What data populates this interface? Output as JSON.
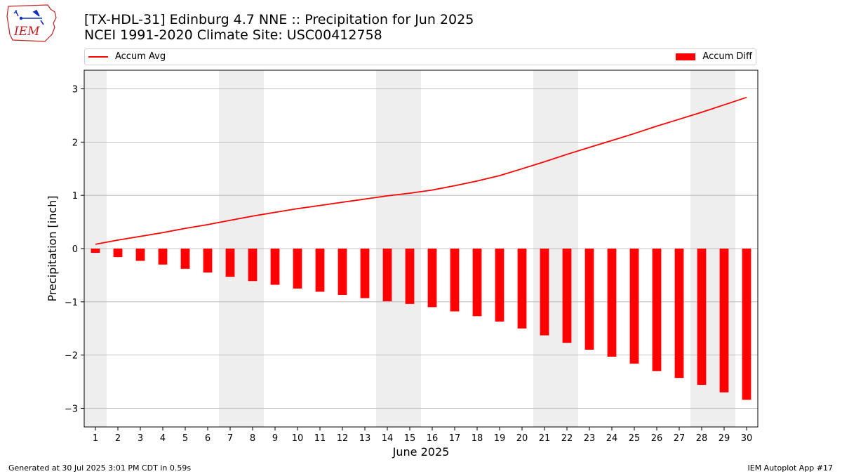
{
  "header": {
    "title_line1": "[TX-HDL-31] Edinburg 4.7 NNE :: Precipitation for Jun 2025",
    "title_line2": "NCEI 1991-2020 Climate Site: USC00412758",
    "logo_text": "IEM"
  },
  "footer": {
    "left": "Generated at 30 Jul 2025 3:01 PM CDT in 0.59s",
    "right": "IEM Autoplot App #17"
  },
  "colors": {
    "series": "#ff0000",
    "weekend_shade": "#eeeeee",
    "grid": "#b0b0b0"
  },
  "chart_data": {
    "type": "bar",
    "xlabel": "June 2025",
    "ylabel": "Precipitation [inch]",
    "xlim": [
      0.5,
      30.5
    ],
    "ylim": [
      -3.35,
      3.35
    ],
    "x": [
      1,
      2,
      3,
      4,
      5,
      6,
      7,
      8,
      9,
      10,
      11,
      12,
      13,
      14,
      15,
      16,
      17,
      18,
      19,
      20,
      21,
      22,
      23,
      24,
      25,
      26,
      27,
      28,
      29,
      30
    ],
    "x_tick_labels": [
      "1",
      "2",
      "3",
      "4",
      "5",
      "6",
      "7",
      "8",
      "9",
      "10",
      "11",
      "12",
      "13",
      "14",
      "15",
      "16",
      "17",
      "18",
      "19",
      "20",
      "21",
      "22",
      "23",
      "24",
      "25",
      "26",
      "27",
      "28",
      "29",
      "30"
    ],
    "y_ticks": [
      -3,
      -2,
      -1,
      0,
      1,
      2,
      3
    ],
    "y_tick_labels": [
      "−3",
      "−2",
      "−1",
      "0",
      "1",
      "2",
      "3"
    ],
    "grid": "horizontal",
    "legend": "top",
    "shaded_days": [
      1,
      7,
      8,
      14,
      15,
      21,
      22,
      28,
      29
    ],
    "series": [
      {
        "name": "Accum Avg",
        "type": "line",
        "values": [
          0.08,
          0.16,
          0.23,
          0.3,
          0.38,
          0.45,
          0.53,
          0.61,
          0.68,
          0.75,
          0.81,
          0.87,
          0.93,
          0.99,
          1.04,
          1.1,
          1.18,
          1.27,
          1.37,
          1.5,
          1.63,
          1.77,
          1.9,
          2.03,
          2.16,
          2.3,
          2.43,
          2.56,
          2.7,
          2.84
        ]
      },
      {
        "name": "Accum Diff",
        "type": "bar",
        "values": [
          -0.08,
          -0.16,
          -0.23,
          -0.3,
          -0.38,
          -0.45,
          -0.53,
          -0.61,
          -0.68,
          -0.75,
          -0.81,
          -0.87,
          -0.93,
          -0.99,
          -1.04,
          -1.1,
          -1.18,
          -1.27,
          -1.37,
          -1.5,
          -1.63,
          -1.77,
          -1.9,
          -2.03,
          -2.16,
          -2.3,
          -2.43,
          -2.56,
          -2.7,
          -2.84
        ]
      }
    ]
  }
}
